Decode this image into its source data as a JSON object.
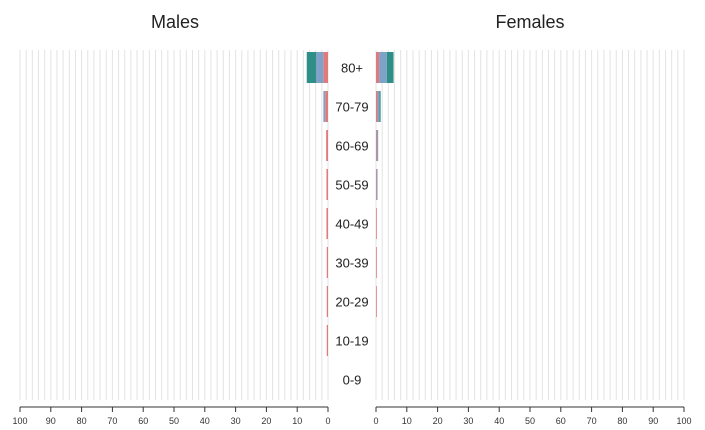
{
  "chart_data": [
    {
      "type": "bar",
      "title": "Males",
      "orientation": "horizontal",
      "direction": "right-to-left",
      "categories": [
        "0-9",
        "10-19",
        "20-29",
        "30-39",
        "40-49",
        "50-59",
        "60-69",
        "70-79",
        "80+"
      ],
      "series": [
        {
          "color": "#e07b7b",
          "values": [
            0,
            0.4,
            0.4,
            0.4,
            0.5,
            0.5,
            0.6,
            0.9,
            1.5
          ]
        },
        {
          "color": "#7fa3c8",
          "values": [
            0,
            0,
            0,
            0,
            0,
            0,
            0,
            0.6,
            2.4
          ]
        },
        {
          "color": "#2f8f86",
          "values": [
            0,
            0,
            0,
            0,
            0,
            0,
            0,
            0,
            3.0
          ]
        }
      ],
      "xlim": [
        0,
        100
      ],
      "xticks": [
        "100",
        "90",
        "80",
        "70",
        "60",
        "50",
        "40",
        "30",
        "20",
        "10",
        "0"
      ],
      "grid": true
    },
    {
      "type": "bar",
      "title": "Females",
      "orientation": "horizontal",
      "direction": "left-to-right",
      "categories": [
        "0-9",
        "10-19",
        "20-29",
        "30-39",
        "40-49",
        "50-59",
        "60-69",
        "70-79",
        "80+"
      ],
      "series": [
        {
          "color": "#e07b7b",
          "values": [
            0,
            0,
            0.2,
            0.2,
            0.2,
            0.2,
            0.3,
            0.5,
            1.0
          ]
        },
        {
          "color": "#7fa3c8",
          "values": [
            0,
            0,
            0,
            0,
            0,
            0.3,
            0.4,
            0.6,
            2.5
          ]
        },
        {
          "color": "#2f8f86",
          "values": [
            0,
            0,
            0,
            0,
            0,
            0,
            0,
            0.4,
            2.2
          ]
        }
      ],
      "xlim": [
        0,
        100
      ],
      "xticks": [
        "0",
        "10",
        "20",
        "30",
        "40",
        "50",
        "60",
        "70",
        "80",
        "90",
        "100"
      ],
      "grid": true
    }
  ],
  "age_groups": [
    "0-9",
    "10-19",
    "20-29",
    "30-39",
    "40-49",
    "50-59",
    "60-69",
    "70-79",
    "80+"
  ]
}
